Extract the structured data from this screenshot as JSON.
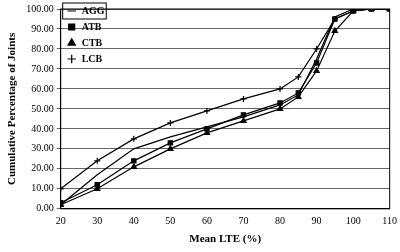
{
  "chart_data": {
    "type": "line",
    "x_label": "Mean LTE (%)",
    "y_label": "Cumulative Percentage of Joints",
    "x": [
      20,
      30,
      40,
      50,
      60,
      70,
      80,
      85,
      90,
      95,
      100,
      105,
      110
    ],
    "series": [
      {
        "name": "AGG",
        "color": "#000000",
        "marker": "none",
        "values": [
          2,
          17,
          30,
          36,
          41,
          46,
          52,
          57,
          75,
          96,
          100,
          100,
          100
        ]
      },
      {
        "name": "ATB",
        "color": "#000000",
        "marker": "square",
        "values": [
          3,
          12,
          24,
          33,
          40,
          47,
          53,
          58,
          73,
          95,
          99,
          100,
          100
        ]
      },
      {
        "name": "CTB",
        "color": "#000000",
        "marker": "triangle",
        "values": [
          2,
          10,
          21,
          30,
          38,
          44,
          50,
          56,
          69,
          89,
          99,
          100,
          100
        ]
      },
      {
        "name": "LCB",
        "color": "#000000",
        "marker": "cross",
        "values": [
          10,
          24,
          35,
          43,
          49,
          55,
          60,
          66,
          80,
          95,
          99,
          100,
          100
        ]
      }
    ],
    "xlim": [
      20,
      110
    ],
    "xticks": [
      20,
      30,
      40,
      50,
      60,
      70,
      80,
      90,
      100,
      110
    ],
    "ylim": [
      0,
      100
    ],
    "yticks": [
      {
        "value": 0,
        "label": "0.00"
      },
      {
        "value": 10,
        "label": "10.00"
      },
      {
        "value": 20,
        "label": "20.00"
      },
      {
        "value": 30,
        "label": "30.00"
      },
      {
        "value": 40,
        "label": "40.00"
      },
      {
        "value": 50,
        "label": "50.00"
      },
      {
        "value": 60,
        "label": "60.00"
      },
      {
        "value": 70,
        "label": "70.00"
      },
      {
        "value": 80,
        "label": "80.00"
      },
      {
        "value": 90,
        "label": "90.00"
      },
      {
        "value": 100,
        "label": "100.00"
      }
    ],
    "grid": "y",
    "legend": "top-left"
  }
}
